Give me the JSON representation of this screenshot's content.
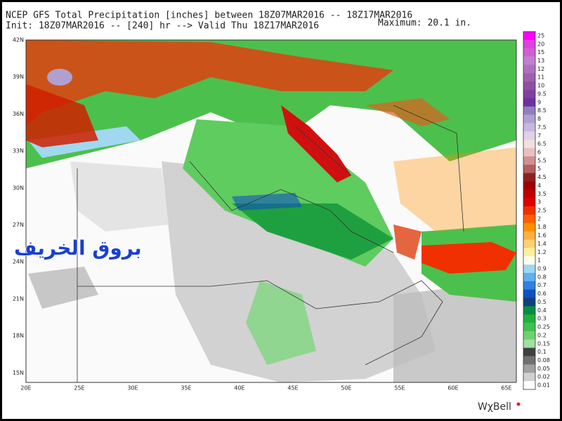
{
  "header": {
    "title": "NCEP GFS Total Precipitation [inches] between 18Z07MAR2016 -- 18Z17MAR2016",
    "init": "Init: 18Z07MAR2016 -- [240] hr --> Valid Thu 18Z17MAR2016",
    "maximum": "Maximum: 20.1 in."
  },
  "map": {
    "latitude_labels": [
      "42N",
      "39N",
      "36N",
      "33N",
      "30N",
      "27N",
      "24N",
      "21N",
      "18N",
      "15N"
    ],
    "longitude_labels": [
      "20E",
      "25E",
      "30E",
      "35E",
      "40E",
      "45E",
      "50E",
      "55E",
      "60E",
      "65E"
    ],
    "watermark": "بروق الخريف"
  },
  "colorbar": {
    "labels": [
      "25",
      "20",
      "15",
      "13",
      "12",
      "11",
      "10",
      "9.5",
      "9",
      "8.5",
      "8",
      "7.5",
      "7",
      "6.5",
      "6",
      "5.5",
      "5",
      "4.5",
      "4",
      "3.5",
      "3",
      "2.5",
      "2",
      "1.8",
      "1.6",
      "1.4",
      "1.2",
      "1",
      "0.9",
      "0.8",
      "0.7",
      "0.6",
      "0.5",
      "0.4",
      "0.3",
      "0.25",
      "0.2",
      "0.15",
      "0.1",
      "0.08",
      "0.05",
      "0.02",
      "0.01"
    ],
    "colors": [
      "#ff00ff",
      "#e040e0",
      "#d060d0",
      "#c080d0",
      "#b070c0",
      "#a060b0",
      "#9050a0",
      "#8040a0",
      "#7030a0",
      "#9080c0",
      "#b0a0d0",
      "#c8b8e0",
      "#e0d0e8",
      "#f0e0e0",
      "#e8c0c0",
      "#d09090",
      "#b06060",
      "#902020",
      "#a00000",
      "#c00000",
      "#e00000",
      "#f03000",
      "#ff6000",
      "#ff9000",
      "#ffb040",
      "#ffd070",
      "#fff0a0",
      "#fffff0",
      "#a0d8f0",
      "#60b0f0",
      "#3080e0",
      "#1050c0",
      "#104080",
      "#009040",
      "#20b040",
      "#40c050",
      "#70d070",
      "#a0e0a0",
      "#404040",
      "#707070",
      "#a0a0a0",
      "#d0d0d0",
      "#ffffff"
    ]
  },
  "footer": {
    "logo": "WχBell"
  }
}
